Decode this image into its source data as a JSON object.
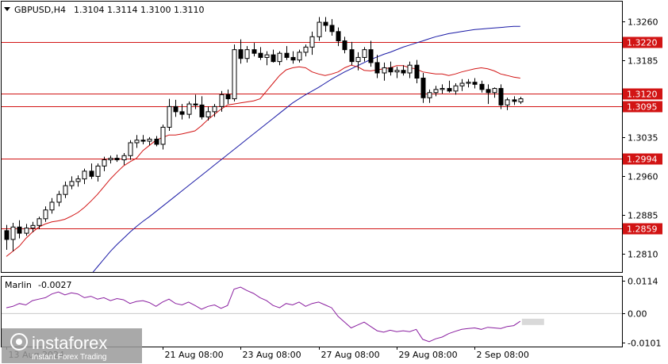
{
  "chart_data": {
    "type": "candlestick",
    "title": "GBPUSD,H4",
    "ohlc_header": "1.3104 1.3114 1.3100 1.3110",
    "colors": {
      "background": "#ffffff",
      "frame": "#000000",
      "candle": "#000000",
      "fast_ma": "#d21414",
      "slow_ma": "#1a1aa6",
      "level_line": "#d21414",
      "level_tag": "#d21414",
      "oscillator": "#8a1fa0"
    },
    "price_axis": {
      "ylim": [
        1.2775,
        1.3298
      ],
      "ticks": [
        "1.3260",
        "1.3185",
        "1.3035",
        "1.2960",
        "1.2885",
        "1.2810"
      ]
    },
    "levels": [
      {
        "value": 1.322,
        "label": "1.3220"
      },
      {
        "value": 1.312,
        "label": "1.3120"
      },
      {
        "value": 1.3095,
        "label": "1.3095"
      },
      {
        "value": 1.2994,
        "label": "1.2994"
      },
      {
        "value": 1.2859,
        "label": "1.2859"
      }
    ],
    "x_labels": [
      {
        "bar": 0,
        "text": "13 Aug 2024"
      },
      {
        "bar": 24,
        "text": "21 Aug 08:00"
      },
      {
        "bar": 36,
        "text": "23 Aug 08:00"
      },
      {
        "bar": 48,
        "text": "27 Aug 08:00"
      },
      {
        "bar": 60,
        "text": "29 Aug 08:00"
      },
      {
        "bar": 72,
        "text": "2 Sep 08:00"
      }
    ],
    "candles": [
      [
        1.2855,
        1.2866,
        1.2818,
        1.2838
      ],
      [
        1.2838,
        1.287,
        1.2815,
        1.2862
      ],
      [
        1.2862,
        1.2875,
        1.284,
        1.285
      ],
      [
        1.285,
        1.2868,
        1.2845,
        1.286
      ],
      [
        1.286,
        1.2872,
        1.2852,
        1.2865
      ],
      [
        1.2865,
        1.2882,
        1.2858,
        1.2878
      ],
      [
        1.2878,
        1.2902,
        1.2872,
        1.2895
      ],
      [
        1.2895,
        1.2918,
        1.2888,
        1.291
      ],
      [
        1.291,
        1.2932,
        1.2902,
        1.2925
      ],
      [
        1.2925,
        1.295,
        1.2918,
        1.2942
      ],
      [
        1.2942,
        1.296,
        1.2935,
        1.295
      ],
      [
        1.295,
        1.2962,
        1.294,
        1.2955
      ],
      [
        1.2955,
        1.2975,
        1.2945,
        1.297
      ],
      [
        1.297,
        1.2985,
        1.2955,
        1.296
      ],
      [
        1.296,
        1.2985,
        1.295,
        1.298
      ],
      [
        1.298,
        1.2998,
        1.297,
        1.2992
      ],
      [
        1.2992,
        1.3,
        1.2985,
        1.2995
      ],
      [
        1.2995,
        1.3002,
        1.2988,
        1.2992
      ],
      [
        1.2992,
        1.3005,
        1.2982,
        1.3
      ],
      [
        1.3,
        1.303,
        1.2992,
        1.3025
      ],
      [
        1.3025,
        1.304,
        1.3015,
        1.303
      ],
      [
        1.303,
        1.304,
        1.3022,
        1.3028
      ],
      [
        1.3028,
        1.3036,
        1.302,
        1.3032
      ],
      [
        1.3032,
        1.3038,
        1.3018,
        1.3022
      ],
      [
        1.3022,
        1.306,
        1.3012,
        1.3055
      ],
      [
        1.3055,
        1.311,
        1.3048,
        1.3095
      ],
      [
        1.3095,
        1.3108,
        1.3075,
        1.3085
      ],
      [
        1.3085,
        1.31,
        1.307,
        1.308
      ],
      [
        1.308,
        1.3105,
        1.3072,
        1.31
      ],
      [
        1.31,
        1.3118,
        1.309,
        1.3098
      ],
      [
        1.3098,
        1.3115,
        1.307,
        1.3075
      ],
      [
        1.3075,
        1.3095,
        1.3068,
        1.3085
      ],
      [
        1.3085,
        1.31,
        1.3075,
        1.3095
      ],
      [
        1.3095,
        1.3125,
        1.3085,
        1.3118
      ],
      [
        1.3118,
        1.3128,
        1.31,
        1.311
      ],
      [
        1.311,
        1.3215,
        1.3105,
        1.3205
      ],
      [
        1.3205,
        1.3225,
        1.3178,
        1.3188
      ],
      [
        1.3188,
        1.3212,
        1.318,
        1.3205
      ],
      [
        1.3205,
        1.3218,
        1.3192,
        1.3198
      ],
      [
        1.3198,
        1.321,
        1.3185,
        1.319
      ],
      [
        1.319,
        1.3202,
        1.3175,
        1.3195
      ],
      [
        1.3195,
        1.3205,
        1.318,
        1.3182
      ],
      [
        1.3182,
        1.3202,
        1.3175,
        1.3198
      ],
      [
        1.3198,
        1.3212,
        1.3185,
        1.319
      ],
      [
        1.319,
        1.3202,
        1.3178,
        1.3185
      ],
      [
        1.3185,
        1.3205,
        1.318,
        1.32
      ],
      [
        1.32,
        1.3215,
        1.3192,
        1.321
      ],
      [
        1.321,
        1.324,
        1.3195,
        1.323
      ],
      [
        1.323,
        1.3268,
        1.3222,
        1.3258
      ],
      [
        1.3258,
        1.3268,
        1.324,
        1.3252
      ],
      [
        1.3252,
        1.3264,
        1.3232,
        1.324
      ],
      [
        1.324,
        1.3248,
        1.3212,
        1.3222
      ],
      [
        1.3222,
        1.323,
        1.3198,
        1.3205
      ],
      [
        1.3205,
        1.322,
        1.3175,
        1.3182
      ],
      [
        1.3182,
        1.32,
        1.3165,
        1.319
      ],
      [
        1.319,
        1.321,
        1.3182,
        1.3205
      ],
      [
        1.3205,
        1.3222,
        1.3172,
        1.318
      ],
      [
        1.318,
        1.3195,
        1.315,
        1.316
      ],
      [
        1.316,
        1.318,
        1.3145,
        1.317
      ],
      [
        1.317,
        1.3182,
        1.3155,
        1.3162
      ],
      [
        1.3162,
        1.3172,
        1.315,
        1.3165
      ],
      [
        1.3165,
        1.3175,
        1.3155,
        1.316
      ],
      [
        1.316,
        1.3182,
        1.315,
        1.3175
      ],
      [
        1.3175,
        1.3185,
        1.314,
        1.315
      ],
      [
        1.315,
        1.316,
        1.3102,
        1.3112
      ],
      [
        1.3112,
        1.3128,
        1.3102,
        1.3122
      ],
      [
        1.3122,
        1.3135,
        1.3115,
        1.3128
      ],
      [
        1.3128,
        1.3138,
        1.312,
        1.313
      ],
      [
        1.313,
        1.3145,
        1.3122,
        1.3125
      ],
      [
        1.3125,
        1.314,
        1.3118,
        1.3135
      ],
      [
        1.3135,
        1.3148,
        1.3125,
        1.314
      ],
      [
        1.314,
        1.3148,
        1.3132,
        1.3142
      ],
      [
        1.3142,
        1.315,
        1.313,
        1.3138
      ],
      [
        1.3138,
        1.3145,
        1.3122,
        1.3128
      ],
      [
        1.3128,
        1.3138,
        1.31,
        1.3122
      ],
      [
        1.3122,
        1.3132,
        1.3112,
        1.313
      ],
      [
        1.313,
        1.3138,
        1.309,
        1.3098
      ],
      [
        1.3098,
        1.3112,
        1.3088,
        1.3108
      ],
      [
        1.3108,
        1.3115,
        1.3098,
        1.3105
      ],
      [
        1.3104,
        1.3114,
        1.31,
        1.311
      ]
    ],
    "fast_ma": [
      1.2805,
      1.2815,
      1.2825,
      1.284,
      1.2852,
      1.2862,
      1.2868,
      1.2872,
      1.2874,
      1.2877,
      1.2883,
      1.289,
      1.29,
      1.2912,
      1.2925,
      1.294,
      1.2955,
      1.2968,
      1.298,
      1.2988,
      1.2995,
      1.301,
      1.302,
      1.303,
      1.3035,
      1.304,
      1.304,
      1.3042,
      1.3045,
      1.3048,
      1.3058,
      1.307,
      1.308,
      1.309,
      1.3098,
      1.31,
      1.3102,
      1.3104,
      1.3106,
      1.311,
      1.3125,
      1.314,
      1.3155,
      1.3166,
      1.317,
      1.3172,
      1.317,
      1.3162,
      1.3158,
      1.3155,
      1.3158,
      1.3162,
      1.317,
      1.3175,
      1.3172,
      1.3165,
      1.3164,
      1.3166,
      1.3168,
      1.317,
      1.3174,
      1.3174,
      1.317,
      1.3168,
      1.3162,
      1.316,
      1.3158,
      1.3158,
      1.3155,
      1.3158,
      1.3162,
      1.3165,
      1.3168,
      1.317,
      1.3168,
      1.3164,
      1.3158,
      1.3155,
      1.3152,
      1.315
    ],
    "slow_ma": [
      1.259,
      1.26,
      1.261,
      1.2622,
      1.2635,
      1.2648,
      1.2662,
      1.2676,
      1.269,
      1.2705,
      1.272,
      1.2736,
      1.2752,
      1.277,
      1.2785,
      1.28,
      1.2815,
      1.2828,
      1.284,
      1.2852,
      1.2863,
      1.2873,
      1.2882,
      1.2892,
      1.2902,
      1.2912,
      1.2922,
      1.2932,
      1.2942,
      1.2952,
      1.2962,
      1.2972,
      1.2982,
      1.2992,
      1.3002,
      1.3012,
      1.3022,
      1.3032,
      1.3042,
      1.3052,
      1.3062,
      1.3072,
      1.3082,
      1.3092,
      1.3102,
      1.311,
      1.3118,
      1.3125,
      1.3132,
      1.314,
      1.3148,
      1.3155,
      1.3162,
      1.3168,
      1.3174,
      1.318,
      1.3186,
      1.3191,
      1.3196,
      1.32,
      1.3205,
      1.321,
      1.3214,
      1.3218,
      1.3222,
      1.3226,
      1.323,
      1.3233,
      1.3236,
      1.3238,
      1.324,
      1.3242,
      1.3244,
      1.3245,
      1.3246,
      1.3247,
      1.3248,
      1.3249,
      1.325,
      1.325
    ],
    "oscillator": {
      "name": "Marlin",
      "value_label": "-0.0027",
      "ylim": [
        -0.0115,
        0.0128
      ],
      "ticks": [
        "0.0114",
        "0.00",
        "-0.0101"
      ],
      "values": [
        0.002,
        0.0025,
        0.0035,
        0.003,
        0.0045,
        0.005,
        0.0055,
        0.0068,
        0.0075,
        0.0065,
        0.0072,
        0.0068,
        0.0055,
        0.006,
        0.005,
        0.0055,
        0.0045,
        0.0052,
        0.0048,
        0.0035,
        0.0042,
        0.0045,
        0.0038,
        0.0025,
        0.004,
        0.005,
        0.0035,
        0.003,
        0.004,
        0.0028,
        0.0015,
        0.0025,
        0.003,
        0.0018,
        0.0028,
        0.0085,
        0.0092,
        0.008,
        0.007,
        0.0055,
        0.0045,
        0.0028,
        0.002,
        0.0035,
        0.003,
        0.004,
        0.0025,
        0.0035,
        0.004,
        0.003,
        0.002,
        -0.001,
        -0.003,
        -0.005,
        -0.004,
        -0.003,
        -0.0045,
        -0.006,
        -0.0065,
        -0.0058,
        -0.0063,
        -0.006,
        -0.0063,
        -0.0055,
        -0.009,
        -0.0098,
        -0.0088,
        -0.0082,
        -0.007,
        -0.0062,
        -0.0055,
        -0.0052,
        -0.005,
        -0.0055,
        -0.0048,
        -0.005,
        -0.0052,
        -0.0045,
        -0.0042,
        -0.0027
      ]
    }
  },
  "watermark": {
    "brand": "instaforex",
    "tagline": "Instant Forex Trading"
  }
}
